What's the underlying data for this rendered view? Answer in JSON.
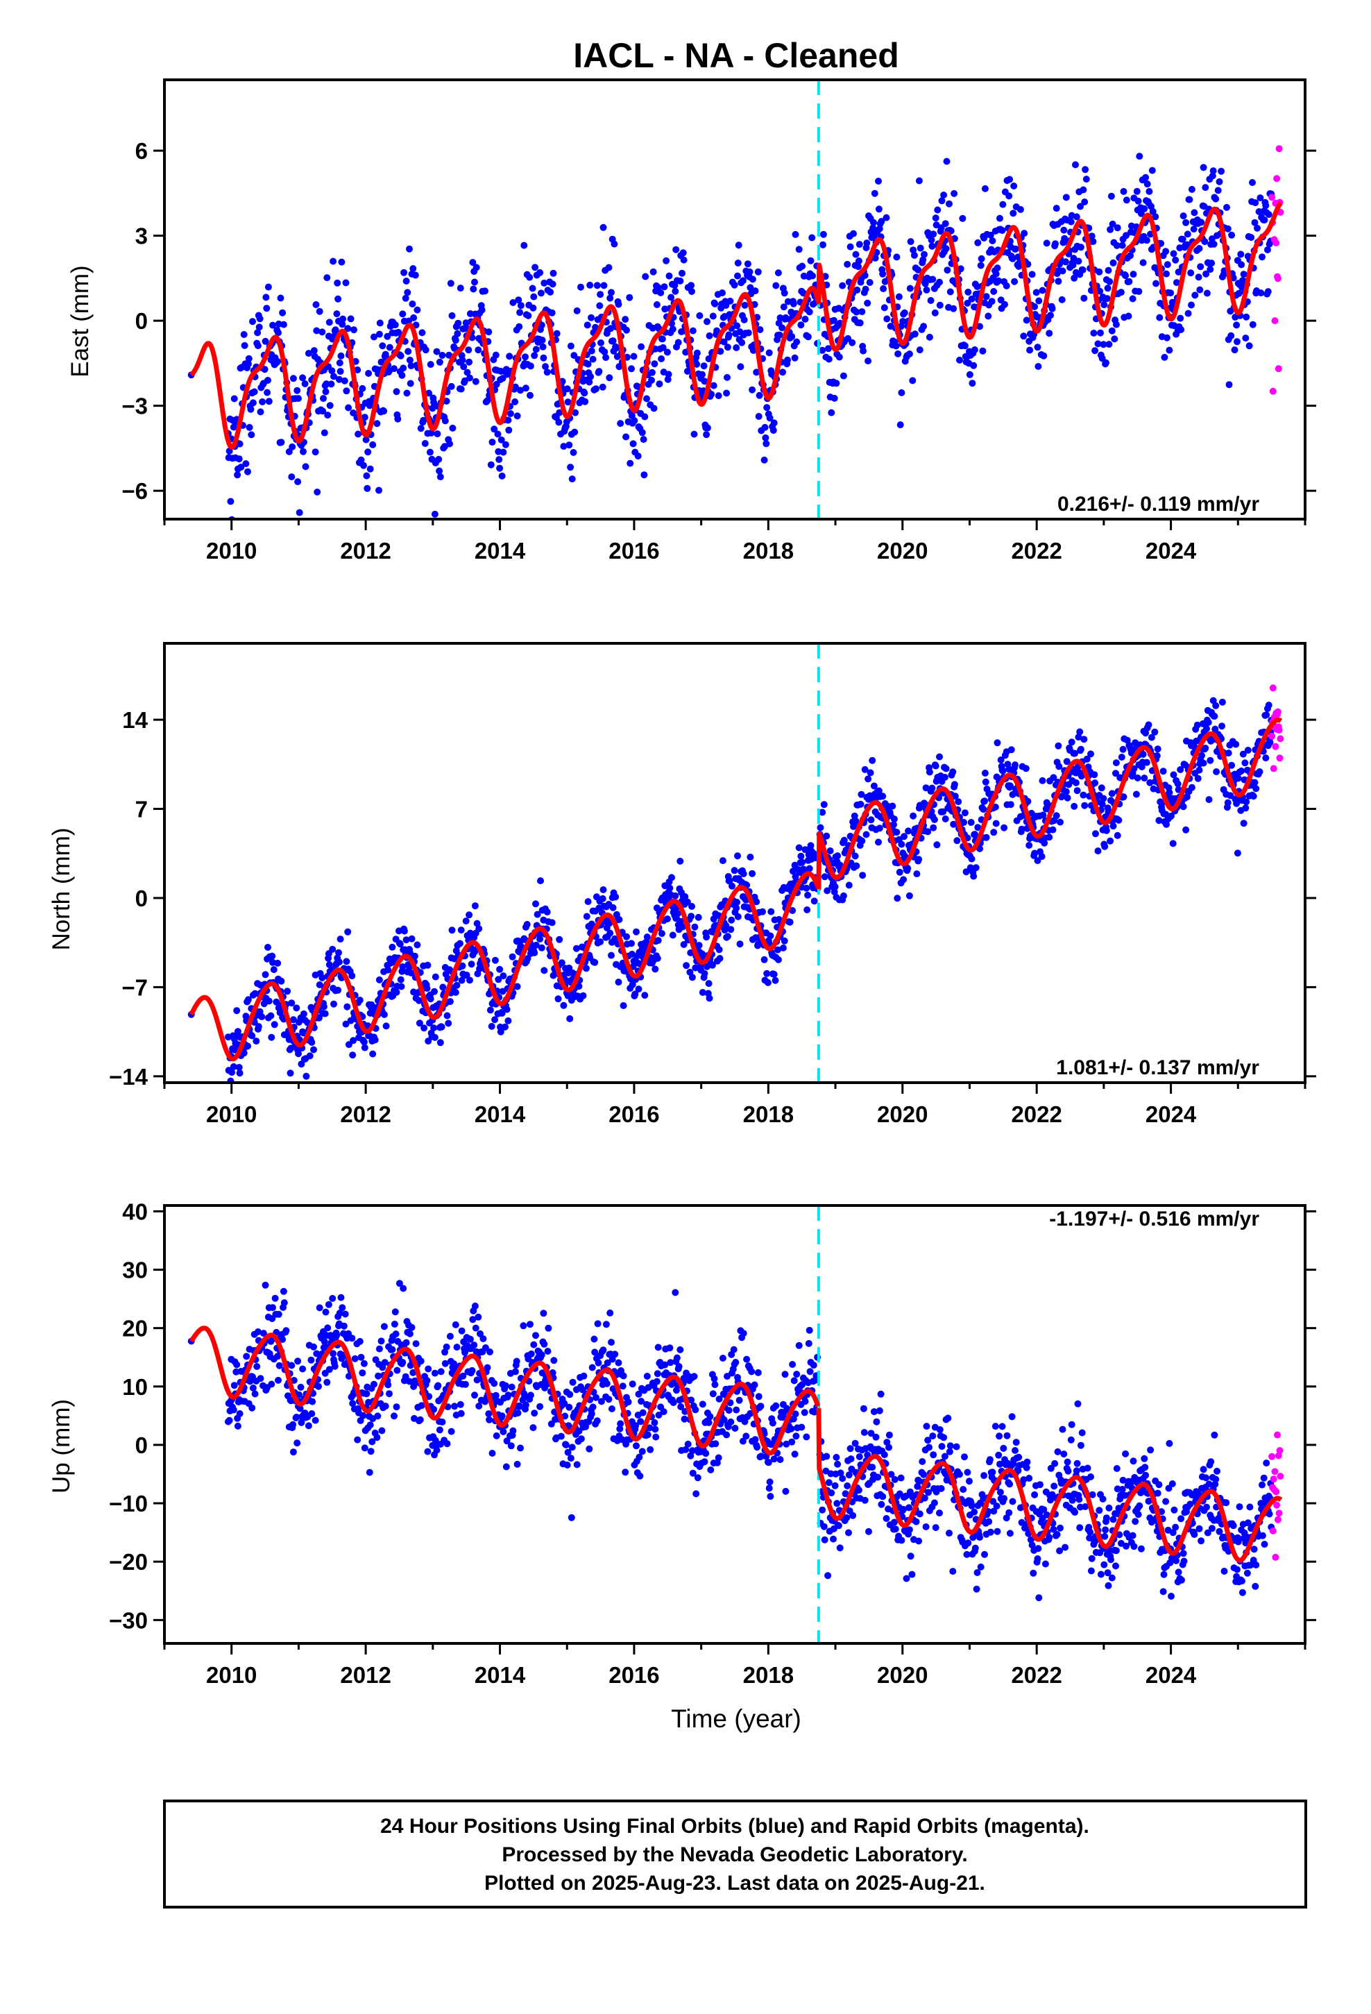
{
  "title": "IACL  - NA - Cleaned",
  "xlabel": "Time (year)",
  "colors": {
    "final": "#0000ff",
    "rapid": "#ff00ff",
    "model": "#ff0000",
    "offset": "#00e5ee"
  },
  "caption": [
    "24 Hour Positions Using Final Orbits (blue) and Rapid Orbits (magenta).",
    "Processed by the Nevada Geodetic Laboratory.",
    "Plotted on 2025-Aug-23. Last data on 2025-Aug-21."
  ],
  "chart_data": [
    {
      "type": "scatter",
      "ylabel": "East (mm)",
      "rate": "0.216+/- 0.119 mm/yr",
      "rate_position": "bottom-right",
      "xlim": [
        2009.0,
        2026.0
      ],
      "ylim": [
        -7.0,
        8.5
      ],
      "x_ticks": [
        2010,
        2012,
        2014,
        2016,
        2018,
        2020,
        2022,
        2024
      ],
      "y_ticks": [
        -6,
        -3,
        0,
        3,
        6
      ],
      "offset_line_x": 2018.75,
      "data_start": 2009.4,
      "data_end": 2025.64,
      "rapid_start": 2025.5,
      "model": {
        "intercept_2009_4": -2.5,
        "slope_mm_per_yr": 0.216,
        "step_at_offset": 1.5,
        "annual_amplitude": 1.6,
        "semiannual_amplitude": 0.6
      },
      "scatter_sigma": 1.2,
      "grid": false
    },
    {
      "type": "scatter",
      "ylabel": "North (mm)",
      "rate": "1.081+/- 0.137 mm/yr",
      "rate_position": "bottom-right",
      "xlim": [
        2009.0,
        2026.0
      ],
      "ylim": [
        -14.5,
        20.0
      ],
      "x_ticks": [
        2010,
        2012,
        2014,
        2016,
        2018,
        2020,
        2022,
        2024
      ],
      "y_ticks": [
        -14,
        -7,
        0,
        7,
        14
      ],
      "offset_line_x": 2018.75,
      "data_start": 2009.4,
      "data_end": 2025.64,
      "rapid_start": 2025.5,
      "model": {
        "intercept_2009_4": -10.5,
        "slope_mm_per_yr": 1.081,
        "step_at_offset": 4.5,
        "annual_amplitude": 2.6,
        "semiannual_amplitude": 0.3
      },
      "scatter_sigma": 1.4,
      "grid": false
    },
    {
      "type": "scatter",
      "ylabel": "Up (mm)",
      "rate": "-1.197+/- 0.516 mm/yr",
      "rate_position": "top-right",
      "xlim": [
        2009.0,
        2026.0
      ],
      "ylim": [
        -34.0,
        41.0
      ],
      "x_ticks": [
        2010,
        2012,
        2014,
        2016,
        2018,
        2020,
        2022,
        2024
      ],
      "y_ticks": [
        -30,
        -20,
        -10,
        0,
        10,
        20,
        30,
        40
      ],
      "offset_line_x": 2018.75,
      "data_start": 2009.4,
      "data_end": 2025.64,
      "rapid_start": 2025.5,
      "model": {
        "intercept_2009_4": 15.0,
        "slope_mm_per_yr": -1.197,
        "step_at_offset": -10.0,
        "annual_amplitude": 5.5,
        "semiannual_amplitude": 0.8
      },
      "scatter_sigma": 4.5,
      "grid": false
    }
  ]
}
